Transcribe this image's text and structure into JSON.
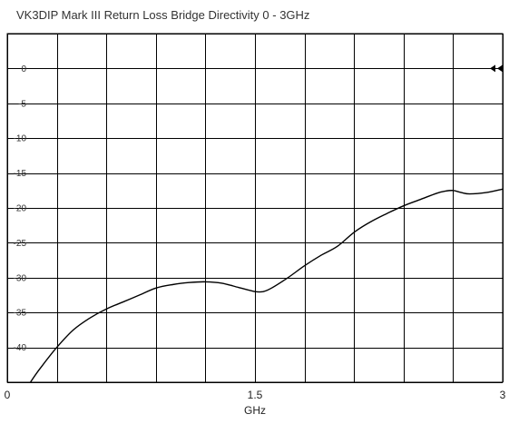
{
  "chart_data": {
    "type": "line",
    "title": "VK3DIP Mark III Return Loss Bridge Directivity 0 - 3GHz",
    "xlabel": "GHz",
    "ylabel": "",
    "xlim": [
      0,
      3
    ],
    "ylim": [
      -45,
      5
    ],
    "x_tick_labels": [
      {
        "value": 0,
        "label": "0"
      },
      {
        "value": 1.5,
        "label": "1.5"
      },
      {
        "value": 3,
        "label": "3"
      }
    ],
    "y_tick_labels": [
      {
        "value": 0,
        "label": "0"
      },
      {
        "value": -5,
        "label": "-5"
      },
      {
        "value": -10,
        "label": "-10"
      },
      {
        "value": -15,
        "label": "-15"
      },
      {
        "value": -20,
        "label": "-20"
      },
      {
        "value": -25,
        "label": "-25"
      },
      {
        "value": -30,
        "label": "-30"
      },
      {
        "value": -35,
        "label": "-35"
      },
      {
        "value": -40,
        "label": "-40"
      }
    ],
    "x_gridlines": [
      0,
      0.3,
      0.6,
      0.9,
      1.2,
      1.5,
      1.8,
      2.1,
      2.4,
      2.7,
      3.0
    ],
    "grid": true,
    "reference_marker": {
      "x": 3,
      "y": 0
    },
    "series": [
      {
        "color": "#000000",
        "x": [
          0.14,
          0.2,
          0.3,
          0.4,
          0.5,
          0.6,
          0.7,
          0.8,
          0.9,
          1.0,
          1.1,
          1.2,
          1.3,
          1.4,
          1.5,
          1.55,
          1.6,
          1.7,
          1.8,
          1.9,
          2.0,
          2.1,
          2.2,
          2.3,
          2.4,
          2.5,
          2.6,
          2.65,
          2.7,
          2.75,
          2.8,
          2.9,
          3.0
        ],
        "y": [
          -45,
          -43,
          -40,
          -37.5,
          -35.8,
          -34.5,
          -33.5,
          -32.5,
          -31.5,
          -31,
          -30.7,
          -30.6,
          -30.8,
          -31.4,
          -32,
          -32,
          -31.5,
          -30,
          -28.3,
          -26.8,
          -25.5,
          -23.5,
          -22,
          -20.8,
          -19.7,
          -18.8,
          -17.9,
          -17.6,
          -17.5,
          -17.8,
          -18,
          -17.8,
          -17.3
        ]
      }
    ]
  }
}
